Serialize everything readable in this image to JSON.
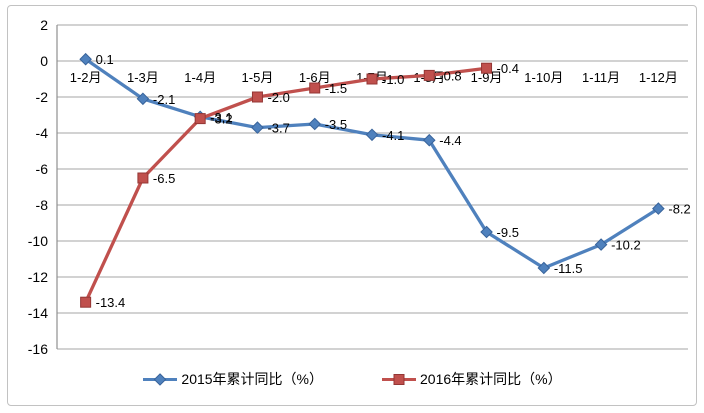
{
  "chart_data": {
    "type": "line",
    "title": "",
    "xlabel": "",
    "ylabel": "",
    "categories": [
      "1-2月",
      "1-3月",
      "1-4月",
      "1-5月",
      "1-6月",
      "1-7月",
      "1-8月",
      "1-9月",
      "1-10月",
      "1-11月",
      "1-12月"
    ],
    "series": [
      {
        "name": "2015年累计同比（%）",
        "marker": "diamond",
        "color": "#4f81bd",
        "marker_edge": "#38639a",
        "values": [
          0.1,
          -2.1,
          -3.1,
          -3.7,
          -3.5,
          -4.1,
          -4.4,
          -9.5,
          -11.5,
          -10.2,
          -8.2
        ],
        "labels": [
          "0.1",
          "-2.1",
          "-3.1",
          "-3.7",
          "-3.5",
          "-4.1",
          "-4.4",
          "-9.5",
          "-11.5",
          "-10.2",
          "-8.2"
        ]
      },
      {
        "name": "2016年累计同比（%）",
        "marker": "square",
        "color": "#c0504d",
        "marker_edge": "#943634",
        "values": [
          -13.4,
          -6.5,
          -3.2,
          -2.0,
          -1.5,
          -1.0,
          -0.8,
          -0.4
        ],
        "labels": [
          "-13.4",
          "-6.5",
          "-3.2",
          "-2.0",
          "-1.5",
          "-1.0",
          "-0.8",
          "-0.4"
        ]
      }
    ],
    "ylim": [
      -16,
      2
    ],
    "yticks": [
      2,
      0,
      -2,
      -4,
      -6,
      -8,
      -10,
      -12,
      -14,
      -16
    ],
    "grid": true,
    "data_labels": true,
    "legend_position": "bottom",
    "grid_color": "#a6a6a6",
    "axis_color": "#8f8f8f",
    "text_color": "#000000"
  }
}
